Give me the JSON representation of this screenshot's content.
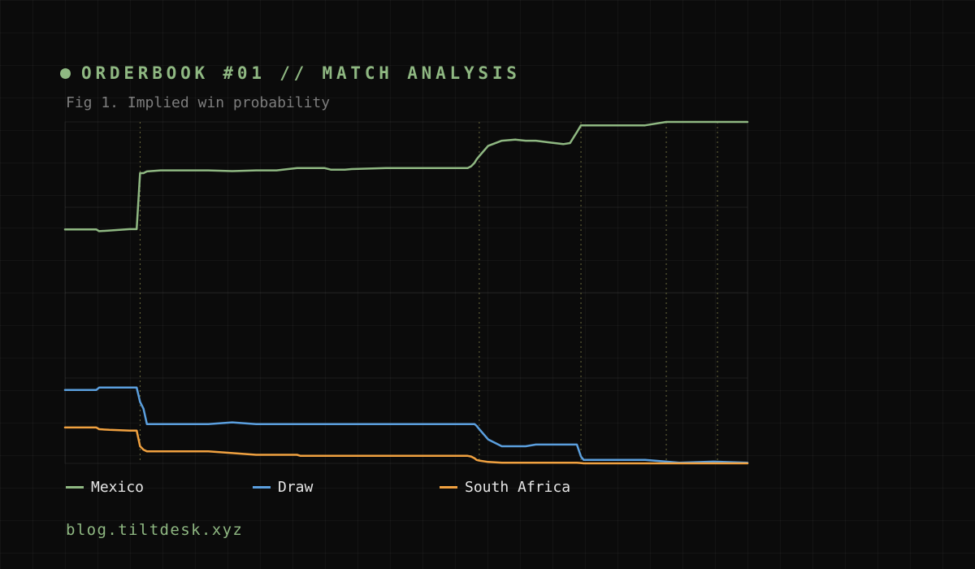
{
  "header": {
    "title": "ORDERBOOK #01 // MATCH ANALYSIS",
    "subtitle": "Fig 1. Implied win probability"
  },
  "footer": {
    "text": "blog.tiltdesk.xyz"
  },
  "colors": {
    "accent": "#8fb882",
    "Mexico": "#8fb882",
    "Draw": "#5b9fde",
    "South Africa": "#f0a140"
  },
  "chart_data": {
    "type": "line",
    "title": "Implied win probability",
    "xlabel": "",
    "ylabel": "",
    "xlim": [
      0,
      100
    ],
    "ylim": [
      0,
      1
    ],
    "grid": true,
    "legend": "bottom",
    "markers": [
      11,
      60.7,
      75.6,
      88.1,
      95.6
    ],
    "x": [
      0,
      4.6,
      5,
      6.5,
      9.5,
      10.2,
      10.5,
      11,
      11.5,
      12,
      14,
      17,
      21,
      24.5,
      28,
      31,
      34,
      34.5,
      35.5,
      38,
      39,
      41,
      42,
      47,
      55,
      58,
      59,
      59.5,
      60,
      60.3,
      60.7,
      62,
      64,
      66,
      67.5,
      69,
      71,
      73,
      74,
      75,
      75.6,
      76,
      77.5,
      80,
      85,
      88.1,
      90,
      95,
      100
    ],
    "series": [
      {
        "name": "Mexico",
        "values": [
          0.685,
          0.685,
          0.68,
          0.682,
          0.686,
          0.686,
          0.686,
          0.85,
          0.85,
          0.855,
          0.858,
          0.858,
          0.858,
          0.856,
          0.858,
          0.858,
          0.865,
          0.865,
          0.865,
          0.865,
          0.86,
          0.86,
          0.862,
          0.865,
          0.865,
          0.865,
          0.865,
          0.87,
          0.88,
          0.89,
          0.9,
          0.93,
          0.945,
          0.948,
          0.945,
          0.945,
          0.94,
          0.935,
          0.938,
          0.97,
          0.99,
          0.99,
          0.99,
          0.99,
          0.99,
          1.0,
          1.0,
          1.0,
          1.0
        ]
      },
      {
        "name": "Draw",
        "values": [
          0.215,
          0.215,
          0.222,
          0.222,
          0.222,
          0.222,
          0.222,
          0.18,
          0.16,
          0.115,
          0.115,
          0.115,
          0.115,
          0.12,
          0.115,
          0.115,
          0.115,
          0.115,
          0.115,
          0.115,
          0.115,
          0.115,
          0.115,
          0.115,
          0.115,
          0.115,
          0.115,
          0.115,
          0.115,
          0.11,
          0.1,
          0.07,
          0.05,
          0.05,
          0.05,
          0.055,
          0.055,
          0.055,
          0.055,
          0.055,
          0.02,
          0.01,
          0.01,
          0.01,
          0.01,
          0.005,
          0.002,
          0.005,
          0.002
        ]
      },
      {
        "name": "South Africa",
        "values": [
          0.105,
          0.105,
          0.1,
          0.098,
          0.096,
          0.096,
          0.096,
          0.05,
          0.04,
          0.035,
          0.035,
          0.035,
          0.035,
          0.03,
          0.025,
          0.025,
          0.025,
          0.022,
          0.022,
          0.022,
          0.022,
          0.022,
          0.022,
          0.022,
          0.022,
          0.022,
          0.022,
          0.02,
          0.015,
          0.01,
          0.008,
          0.004,
          0.002,
          0.002,
          0.002,
          0.002,
          0.002,
          0.002,
          0.002,
          0.002,
          0.001,
          0.0,
          0.0,
          0.0,
          0.0,
          0.0,
          0.0,
          0.0,
          0.0
        ]
      }
    ]
  }
}
